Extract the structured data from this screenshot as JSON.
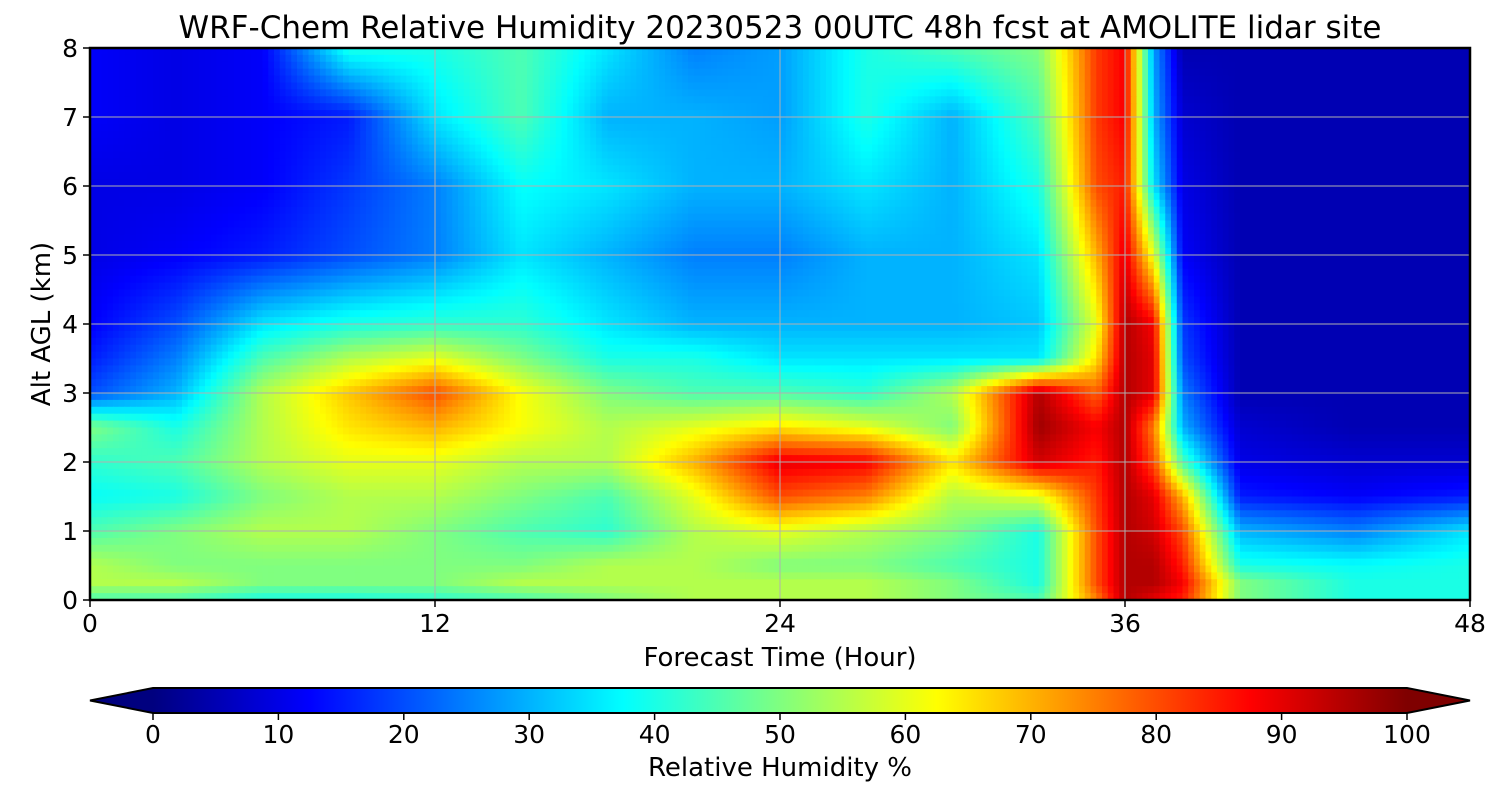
{
  "chart_data": {
    "type": "heatmap",
    "title": "WRF-Chem Relative Humidity 20230523 00UTC 48h fcst at AMOLITE lidar site",
    "xlabel": "Forecast Time (Hour)",
    "ylabel": "Alt AGL (km)",
    "xlim": [
      0,
      48
    ],
    "ylim": [
      0,
      8
    ],
    "xticks": [
      0,
      12,
      24,
      36,
      48
    ],
    "yticks": [
      0,
      1,
      2,
      3,
      4,
      5,
      6,
      7,
      8
    ],
    "grid": true,
    "colormap": "jet",
    "colorbar": {
      "label": "Relative Humidity %",
      "ticks": [
        0,
        10,
        20,
        30,
        40,
        50,
        60,
        70,
        80,
        90,
        100
      ],
      "range": [
        0,
        100
      ],
      "extend": "both"
    },
    "grid_x_hours": [
      0,
      3,
      6,
      9,
      12,
      15,
      18,
      21,
      24,
      27,
      30,
      33,
      35,
      36,
      37,
      38,
      40,
      44,
      48
    ],
    "grid_y_km": [
      0,
      0.25,
      0.5,
      1,
      1.5,
      2,
      2.5,
      3,
      3.5,
      4,
      5,
      6,
      7,
      8
    ],
    "rh_values": [
      [
        45,
        45,
        40,
        40,
        42,
        45,
        50,
        55,
        55,
        55,
        50,
        45,
        75,
        95,
        90,
        85,
        50,
        40,
        40
      ],
      [
        55,
        55,
        50,
        50,
        50,
        55,
        55,
        55,
        55,
        55,
        50,
        40,
        80,
        95,
        95,
        88,
        50,
        40,
        40
      ],
      [
        55,
        50,
        50,
        50,
        50,
        50,
        55,
        55,
        50,
        50,
        45,
        40,
        80,
        95,
        95,
        85,
        40,
        38,
        40
      ],
      [
        45,
        50,
        55,
        55,
        50,
        45,
        42,
        55,
        60,
        55,
        50,
        40,
        80,
        95,
        92,
        80,
        30,
        25,
        35
      ],
      [
        38,
        40,
        50,
        55,
        55,
        50,
        45,
        60,
        80,
        75,
        55,
        60,
        82,
        95,
        90,
        70,
        15,
        12,
        15
      ],
      [
        42,
        45,
        55,
        60,
        60,
        55,
        55,
        70,
        90,
        88,
        65,
        92,
        85,
        95,
        80,
        45,
        10,
        8,
        8
      ],
      [
        50,
        40,
        55,
        65,
        70,
        62,
        55,
        60,
        65,
        60,
        50,
        97,
        88,
        95,
        75,
        30,
        8,
        5,
        5
      ],
      [
        20,
        30,
        55,
        68,
        80,
        62,
        50,
        45,
        45,
        42,
        55,
        95,
        78,
        95,
        90,
        25,
        5,
        5,
        5
      ],
      [
        15,
        25,
        45,
        55,
        60,
        50,
        40,
        40,
        35,
        35,
        35,
        35,
        65,
        95,
        90,
        20,
        5,
        5,
        5
      ],
      [
        12,
        20,
        35,
        40,
        42,
        42,
        35,
        30,
        30,
        30,
        30,
        32,
        60,
        95,
        88,
        18,
        5,
        5,
        5
      ],
      [
        10,
        12,
        15,
        20,
        25,
        35,
        30,
        25,
        25,
        30,
        30,
        35,
        70,
        90,
        60,
        12,
        5,
        5,
        5
      ],
      [
        10,
        10,
        12,
        18,
        25,
        38,
        35,
        30,
        30,
        35,
        30,
        40,
        80,
        85,
        35,
        10,
        5,
        5,
        5
      ],
      [
        12,
        10,
        12,
        15,
        35,
        45,
        30,
        30,
        28,
        40,
        30,
        45,
        82,
        88,
        30,
        8,
        5,
        5,
        5
      ],
      [
        12,
        10,
        12,
        40,
        40,
        45,
        35,
        25,
        28,
        40,
        45,
        50,
        82,
        88,
        28,
        5,
        5,
        5,
        5
      ]
    ]
  }
}
